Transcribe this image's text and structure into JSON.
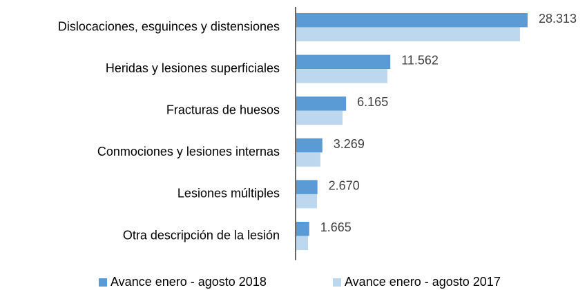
{
  "chart_data": {
    "type": "bar",
    "orientation": "horizontal",
    "categories": [
      "Dislocaciones, esguinces y distensiones",
      "Heridas y lesiones superficiales",
      "Fracturas de huesos",
      "Conmociones y lesiones internas",
      "Lesiones múltiples",
      "Otra descripción de la lesión"
    ],
    "series": [
      {
        "name": "Avance enero - agosto 2018",
        "color": "#5b9bd5",
        "values": [
          28313,
          11562,
          6165,
          3269,
          2670,
          1665
        ],
        "value_labels": [
          "28.313",
          "11.562",
          "6.165",
          "3.269",
          "2.670",
          "1.665"
        ]
      },
      {
        "name": "Avance enero - agosto 2017",
        "color": "#bdd7ee",
        "values": [
          27380,
          11200,
          5730,
          3030,
          2610,
          1520
        ]
      }
    ],
    "legend": "bottom"
  }
}
